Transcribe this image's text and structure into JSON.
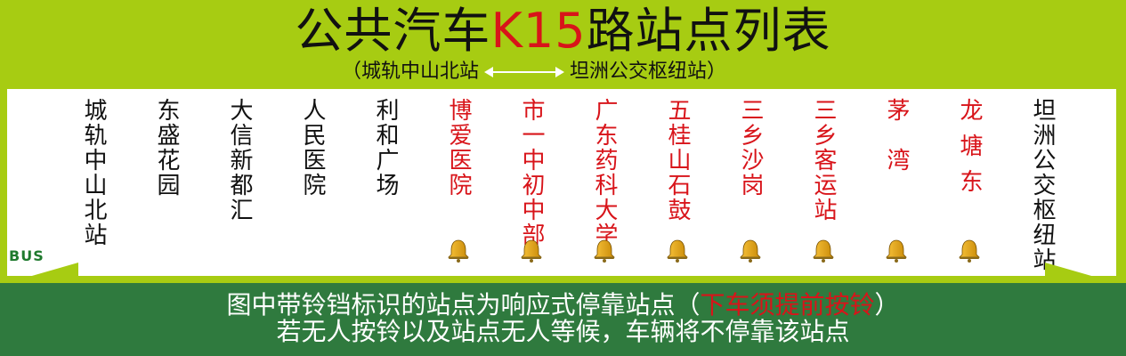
{
  "title": {
    "prefix": "公共汽车",
    "route": "K15",
    "suffix": "路站点列表"
  },
  "subtitle": {
    "open": "（城轨中山北站",
    "close": "坦洲公交枢纽站）"
  },
  "stations": [
    {
      "name": "城轨中山北站",
      "color": "#111111",
      "bell": false
    },
    {
      "name": "东盛花园",
      "color": "#111111",
      "bell": false
    },
    {
      "name": "大信新都汇",
      "color": "#111111",
      "bell": false
    },
    {
      "name": "人民医院",
      "color": "#111111",
      "bell": false
    },
    {
      "name": "利和广场",
      "color": "#111111",
      "bell": false
    },
    {
      "name": "博爱医院",
      "color": "#d8141a",
      "bell": true
    },
    {
      "name": "市一中初中部",
      "color": "#d8141a",
      "bell": true
    },
    {
      "name": "广东药科大学",
      "color": "#d8141a",
      "bell": true
    },
    {
      "name": "五桂山石鼓",
      "color": "#d8141a",
      "bell": true
    },
    {
      "name": "三乡沙岗",
      "color": "#d8141a",
      "bell": true
    },
    {
      "name": "三乡客运站",
      "color": "#d8141a",
      "bell": true
    },
    {
      "name": "茅湾",
      "color": "#d8141a",
      "bell": true
    },
    {
      "name": "龙塘东",
      "color": "#d8141a",
      "bell": true
    },
    {
      "name": "坦洲公交枢纽站",
      "color": "#111111",
      "bell": false
    }
  ],
  "bus_label": "BUS",
  "notice": {
    "line1_a": "图中带铃铛标识的站点为响应式停靠站点（",
    "line1_red": "下车须提前按铃",
    "line1_b": "）",
    "line2": "若无人按铃以及站点无人等候，车辆将不停靠该站点"
  },
  "colors": {
    "background": "#a7cc12",
    "panel": "#ffffff",
    "banner": "#2f7a3e",
    "accent_red": "#d8141a"
  }
}
